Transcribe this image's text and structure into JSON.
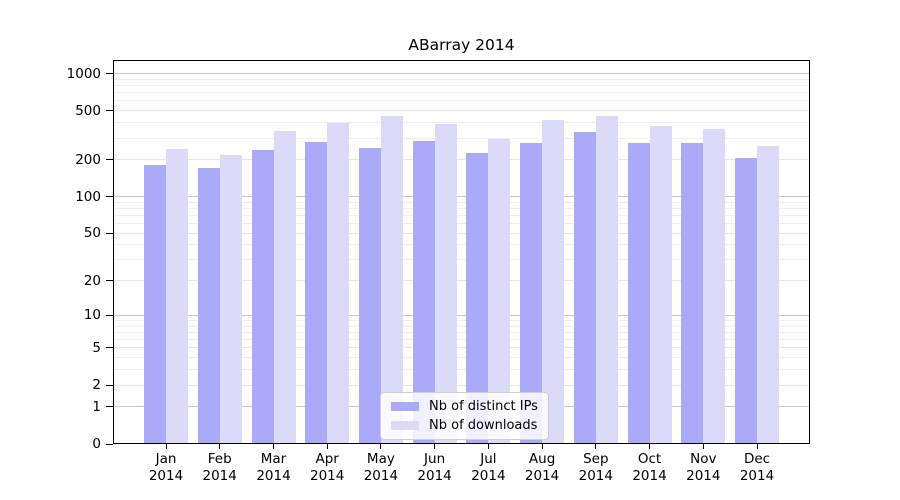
{
  "title": "ABarray 2014",
  "colors": {
    "ips_bar": "#aaaaf8",
    "downloads_bar": "#dbdbf9",
    "grid_power10": "#c8c8c8",
    "grid_labeled": "#e6e6e6",
    "grid_minor": "#eeeeee",
    "axis": "#000000",
    "legend_border": "#cfcfcf"
  },
  "legend": {
    "items": [
      {
        "label": "Nb of distinct IPs",
        "color_key": "ips_bar"
      },
      {
        "label": "Nb of downloads",
        "color_key": "downloads_bar"
      }
    ]
  },
  "chart_data": {
    "type": "bar",
    "title": "ABarray 2014",
    "categories": [
      "Jan 2014",
      "Feb 2014",
      "Mar 2014",
      "Apr 2014",
      "May 2014",
      "Jun 2014",
      "Jul 2014",
      "Aug 2014",
      "Sep 2014",
      "Oct 2014",
      "Nov 2014",
      "Dec 2014"
    ],
    "series": [
      {
        "name": "Nb of distinct IPs",
        "values": [
          181,
          170,
          238,
          279,
          247,
          286,
          227,
          274,
          334,
          272,
          274,
          207
        ]
      },
      {
        "name": "Nb of downloads",
        "values": [
          244,
          219,
          345,
          395,
          451,
          388,
          297,
          422,
          451,
          377,
          352,
          260
        ]
      }
    ],
    "xlabel": "",
    "ylabel": "",
    "y_scale": "log10(1+y)",
    "y_tick_values": [
      0,
      1,
      2,
      5,
      10,
      20,
      50,
      100,
      200,
      500,
      1000
    ],
    "y_tick_labels": [
      "0",
      "1",
      "2",
      "5",
      "10",
      "20",
      "50",
      "100",
      "200",
      "500",
      "1000"
    ],
    "y_minor_grid_values": [
      3,
      4,
      6,
      7,
      8,
      9,
      30,
      40,
      60,
      70,
      80,
      90,
      300,
      400,
      600,
      700,
      800,
      900
    ],
    "ylim": [
      0,
      1287
    ],
    "grid": "horizontal",
    "legend_position": "lower-center"
  }
}
